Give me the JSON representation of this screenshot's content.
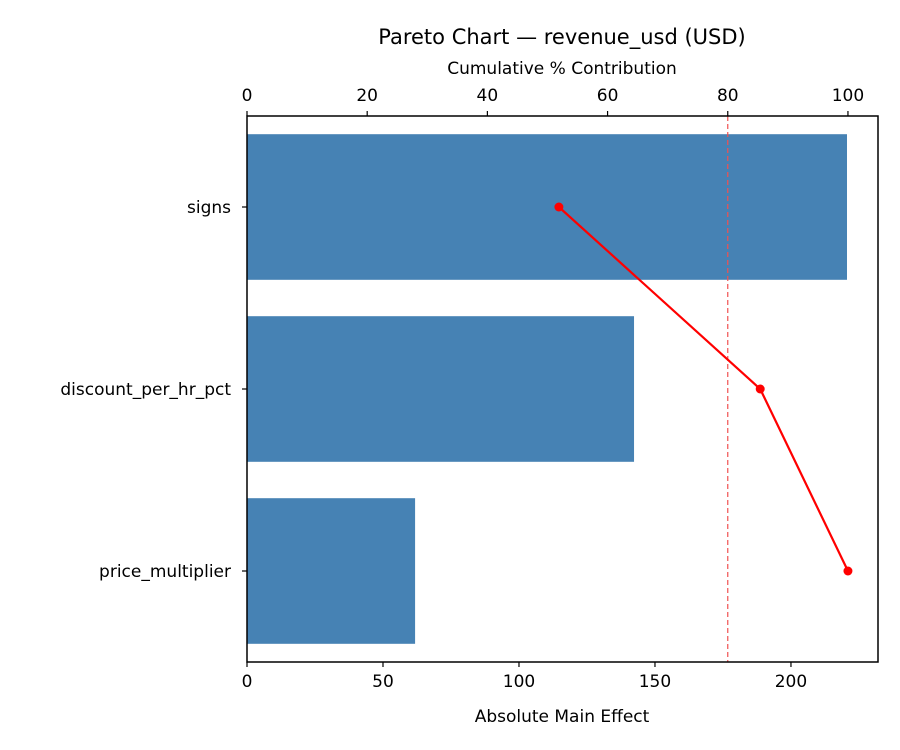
{
  "chart_data": {
    "type": "bar",
    "orientation": "horizontal",
    "title": "Pareto Chart — revenue_usd (USD)",
    "xlabel": "Absolute Main Effect",
    "ylabel": "",
    "secondary_xlabel": "Cumulative % Contribution",
    "categories": [
      "signs",
      "discount_per_hr_pct",
      "price_multiplier"
    ],
    "values": [
      220.6,
      142.3,
      61.8
    ],
    "cumulative_pct": [
      51.9,
      85.4,
      100.0
    ],
    "xlim": [
      0,
      232
    ],
    "secondary_xlim": [
      0,
      105
    ],
    "xticks": [
      0,
      50,
      100,
      150,
      200
    ],
    "secondary_xticks": [
      0,
      20,
      40,
      60,
      80,
      100
    ],
    "threshold_pct": 80,
    "grid": false,
    "legend": null,
    "series": [
      {
        "name": "Absolute Main Effect",
        "type": "bar",
        "color": "#4682b4",
        "values": [
          220.6,
          142.3,
          61.8
        ]
      },
      {
        "name": "Cumulative %",
        "type": "line",
        "color": "#ff0000",
        "values": [
          51.9,
          85.4,
          100.0
        ]
      }
    ],
    "colors": {
      "bar": "#4682b4",
      "line": "#ff0000",
      "threshold": "#f05050"
    }
  }
}
